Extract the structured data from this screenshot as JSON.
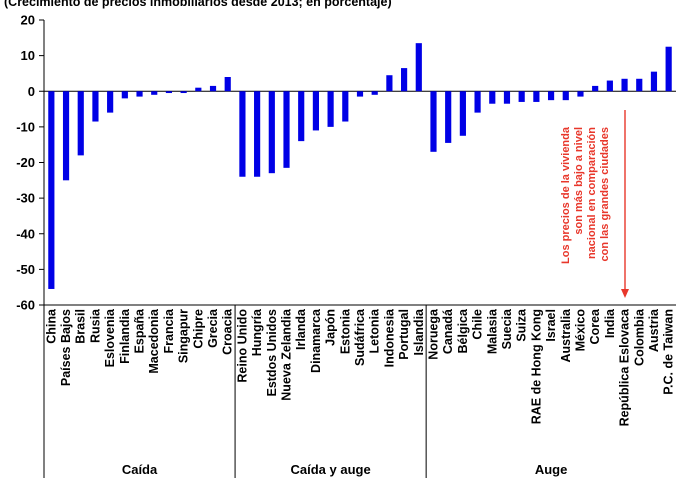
{
  "subtitle": "(Crecimiento de precios inmobiliarios desde 2013; en porcentaje)",
  "annotation": {
    "lines": [
      "Los precios de la vivienda",
      "son más bajo a nivel",
      "nacional en comparación",
      "con las grandes ciudades"
    ],
    "color": "#e8372b"
  },
  "colors": {
    "bar": "#0000e6",
    "axis": "#000000"
  },
  "chart_data": {
    "type": "bar",
    "title": "",
    "xlabel": "",
    "ylabel": "",
    "ylim": [
      -60,
      20
    ],
    "yticks": [
      20,
      10,
      0,
      -10,
      -20,
      -30,
      -40,
      -50,
      -60
    ],
    "grid": false,
    "legend": "none",
    "categories": [
      "China",
      "Países Bajos",
      "Brasil",
      "Rusia",
      "Eslovenia",
      "Finlandia",
      "España",
      "Macedonia",
      "Francia",
      "Singapur",
      "Chipre",
      "Grecia",
      "Croacia",
      "Reino Unido",
      "Hungría",
      "Estdos Unidos",
      "Nueva Zelandia",
      "Irlanda",
      "Dinamarca",
      "Japón",
      "Estonia",
      "Sudáfrica",
      "Letonia",
      "Indonesia",
      "Portugal",
      "Islandia",
      "Noruega",
      "Canadá",
      "Bélgica",
      "Chile",
      "Malasia",
      "Suecia",
      "Suiza",
      "RAE de Hong Kong",
      "Israel",
      "Australia",
      "México",
      "Corea",
      "India",
      "República Eslovaca",
      "Colombia",
      "Austria",
      "P.C. de Taiwan"
    ],
    "values": [
      -55.5,
      -25,
      -18,
      -8.5,
      -6,
      -2,
      -1.5,
      -1,
      -0.5,
      -0.5,
      1,
      1.5,
      4,
      -24,
      -24,
      -23,
      -21.5,
      -14,
      -11,
      -10,
      -8.5,
      -1.5,
      -1,
      4.5,
      6.5,
      13.5,
      -17,
      -14.5,
      -12.5,
      -6,
      -3.5,
      -3.5,
      -3,
      -3,
      -2.5,
      -2.5,
      -1.5,
      1.5,
      3,
      3.5,
      3.5,
      5.5,
      12.5
    ],
    "groups": [
      {
        "label": "Caída",
        "count": 13
      },
      {
        "label": "Caída y auge",
        "count": 13
      },
      {
        "label": "Auge",
        "count": 17
      }
    ]
  }
}
